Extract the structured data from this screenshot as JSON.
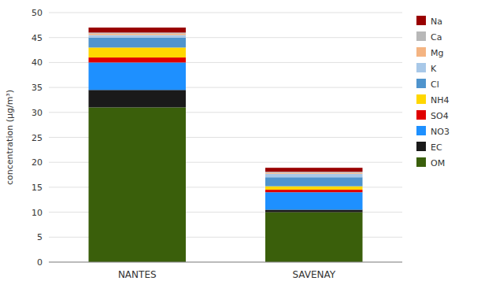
{
  "chart_data": {
    "type": "bar",
    "stacked": true,
    "categories": [
      "NANTES",
      "SAVENAY"
    ],
    "series": [
      {
        "name": "OM",
        "color": "#3a5f0b",
        "values": [
          31.0,
          10.0
        ]
      },
      {
        "name": "EC",
        "color": "#1a1a1a",
        "values": [
          3.5,
          0.5
        ]
      },
      {
        "name": "NO3",
        "color": "#1e90ff",
        "values": [
          5.5,
          3.5
        ]
      },
      {
        "name": "SO4",
        "color": "#e00000",
        "values": [
          1.0,
          0.5
        ]
      },
      {
        "name": "NH4",
        "color": "#ffd700",
        "values": [
          2.0,
          0.7
        ]
      },
      {
        "name": "Cl",
        "color": "#4f94cd",
        "values": [
          2.0,
          1.8
        ]
      },
      {
        "name": "K",
        "color": "#a8c8e8",
        "values": [
          0.5,
          0.7
        ]
      },
      {
        "name": "Mg",
        "color": "#f4b482",
        "values": [
          0.3,
          0.2
        ]
      },
      {
        "name": "Ca",
        "color": "#b8b8b8",
        "values": [
          0.2,
          0.2
        ]
      },
      {
        "name": "Na",
        "color": "#990000",
        "values": [
          1.0,
          0.8
        ]
      }
    ],
    "y_label": "concentration (µg/m³)",
    "ylim": [
      0,
      50
    ],
    "yticks": [
      0,
      5,
      10,
      15,
      20,
      25,
      30,
      35,
      40,
      45,
      50
    ],
    "grid": true,
    "legend": "right"
  }
}
